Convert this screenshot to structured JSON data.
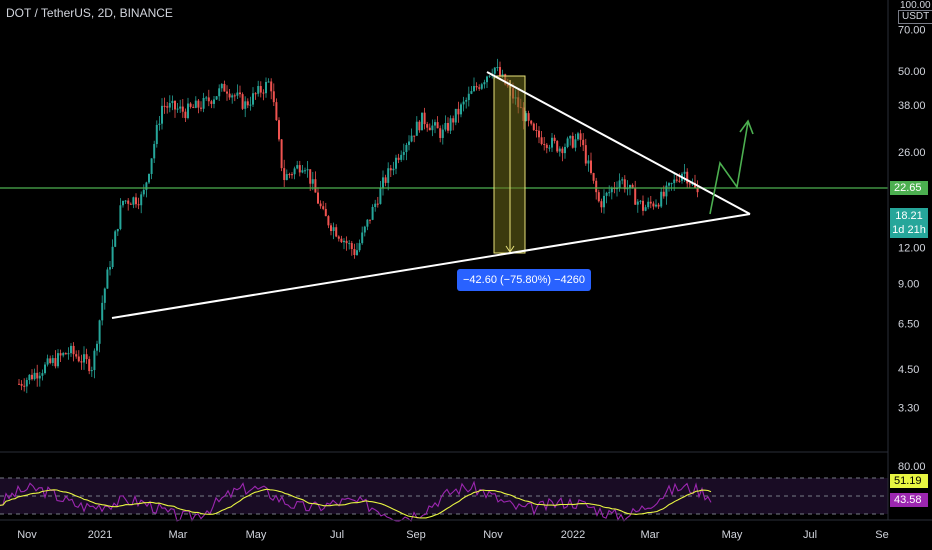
{
  "header": {
    "symbol": "DOT / TetherUS, 2D, BINANCE"
  },
  "price_axis": {
    "top_label": "100.00",
    "currency": "USDT"
  },
  "chart_data": {
    "type": "candlestick",
    "symbol": "DOT / TetherUS",
    "interval": "2D",
    "exchange": "BINANCE",
    "scale": "log",
    "y_ticks": [
      3.3,
      4.5,
      6.5,
      9.0,
      12.0,
      26.0,
      38.0,
      50.0,
      70.0
    ],
    "x_ticks": [
      "Nov",
      "2021",
      "Mar",
      "May",
      "Jul",
      "Sep",
      "Nov",
      "2022",
      "Mar",
      "May",
      "Jul",
      "Se"
    ],
    "price_path": [
      [
        "2020-11-01",
        4.0
      ],
      [
        "2020-12-10",
        5.2
      ],
      [
        "2020-12-28",
        4.6
      ],
      [
        "2021-01-05",
        8.0
      ],
      [
        "2021-01-20",
        17.5
      ],
      [
        "2021-02-05",
        18.0
      ],
      [
        "2021-02-20",
        38.0
      ],
      [
        "2021-03-10",
        36.0
      ],
      [
        "2021-03-25",
        38.5
      ],
      [
        "2021-04-10",
        44.0
      ],
      [
        "2021-04-25",
        38.0
      ],
      [
        "2021-05-15",
        46.0
      ],
      [
        "2021-05-25",
        21.0
      ],
      [
        "2021-06-10",
        24.0
      ],
      [
        "2021-06-25",
        15.5
      ],
      [
        "2021-07-20",
        11.5
      ],
      [
        "2021-08-10",
        20.0
      ],
      [
        "2021-08-25",
        27.0
      ],
      [
        "2021-09-10",
        34.0
      ],
      [
        "2021-09-25",
        30.0
      ],
      [
        "2021-10-20",
        43.0
      ],
      [
        "2021-11-04",
        52.0
      ],
      [
        "2021-11-20",
        40.0
      ],
      [
        "2021-12-05",
        30.0
      ],
      [
        "2021-12-25",
        27.0
      ],
      [
        "2022-01-10",
        29.0
      ],
      [
        "2022-01-25",
        17.0
      ],
      [
        "2022-02-10",
        21.0
      ],
      [
        "2022-02-28",
        16.5
      ],
      [
        "2022-03-15",
        18.0
      ],
      [
        "2022-03-31",
        22.5
      ],
      [
        "2022-04-12",
        18.21
      ]
    ],
    "current_price": 18.21,
    "countdown": "1d 21h",
    "horizontal_level": 22.65,
    "measurement": {
      "from": 56.2,
      "to": 13.6,
      "label": "−42.60 (−75.80%) −4260"
    },
    "projection": "upward arrow",
    "rsi": {
      "ticks": [
        80.0
      ],
      "values": [
        51.19,
        43.58
      ],
      "colors": [
        "#e8f542",
        "#9c27b0"
      ]
    },
    "colors": {
      "up": "#26a69a",
      "down": "#ef5350",
      "level": "#4caf50",
      "measure": "#2962ff"
    }
  }
}
